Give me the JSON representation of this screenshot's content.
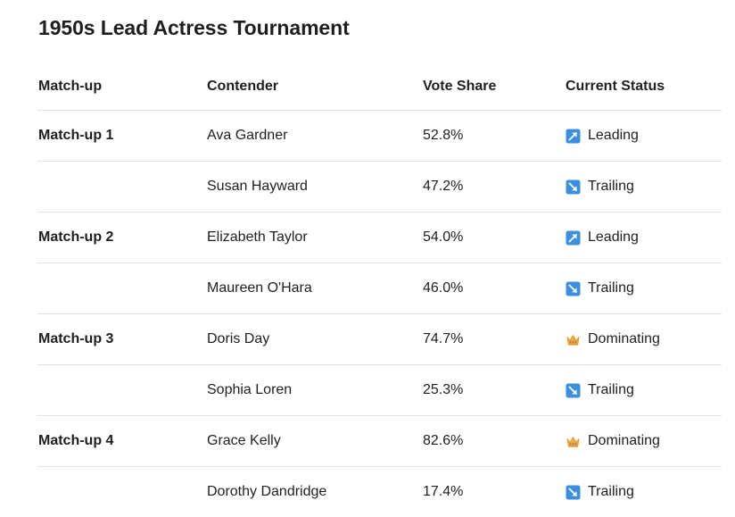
{
  "title": "1950s Lead Actress Tournament",
  "headers": {
    "matchup": "Match-up",
    "contender": "Contender",
    "vote_share": "Vote Share",
    "status": "Current Status"
  },
  "rows": [
    {
      "matchup": "Match-up 1",
      "contender": "Ava Gardner",
      "vote_share": "52.8%",
      "status": "Leading",
      "icon": "arrow-up-right-icon"
    },
    {
      "matchup": "",
      "contender": "Susan Hayward",
      "vote_share": "47.2%",
      "status": "Trailing",
      "icon": "arrow-down-right-icon"
    },
    {
      "matchup": "Match-up 2",
      "contender": "Elizabeth Taylor",
      "vote_share": "54.0%",
      "status": "Leading",
      "icon": "arrow-up-right-icon"
    },
    {
      "matchup": "",
      "contender": "Maureen O'Hara",
      "vote_share": "46.0%",
      "status": "Trailing",
      "icon": "arrow-down-right-icon"
    },
    {
      "matchup": "Match-up 3",
      "contender": "Doris Day",
      "vote_share": "74.7%",
      "status": "Dominating",
      "icon": "crown-icon"
    },
    {
      "matchup": "",
      "contender": "Sophia Loren",
      "vote_share": "25.3%",
      "status": "Trailing",
      "icon": "arrow-down-right-icon"
    },
    {
      "matchup": "Match-up 4",
      "contender": "Grace Kelly",
      "vote_share": "82.6%",
      "status": "Dominating",
      "icon": "crown-icon"
    },
    {
      "matchup": "",
      "contender": "Dorothy Dandridge",
      "vote_share": "17.4%",
      "status": "Trailing",
      "icon": "arrow-down-right-icon"
    }
  ],
  "colors": {
    "arrow_tile": "#3b8fe0",
    "crown": "#f2a93b",
    "divider": "#e3e3e3"
  }
}
